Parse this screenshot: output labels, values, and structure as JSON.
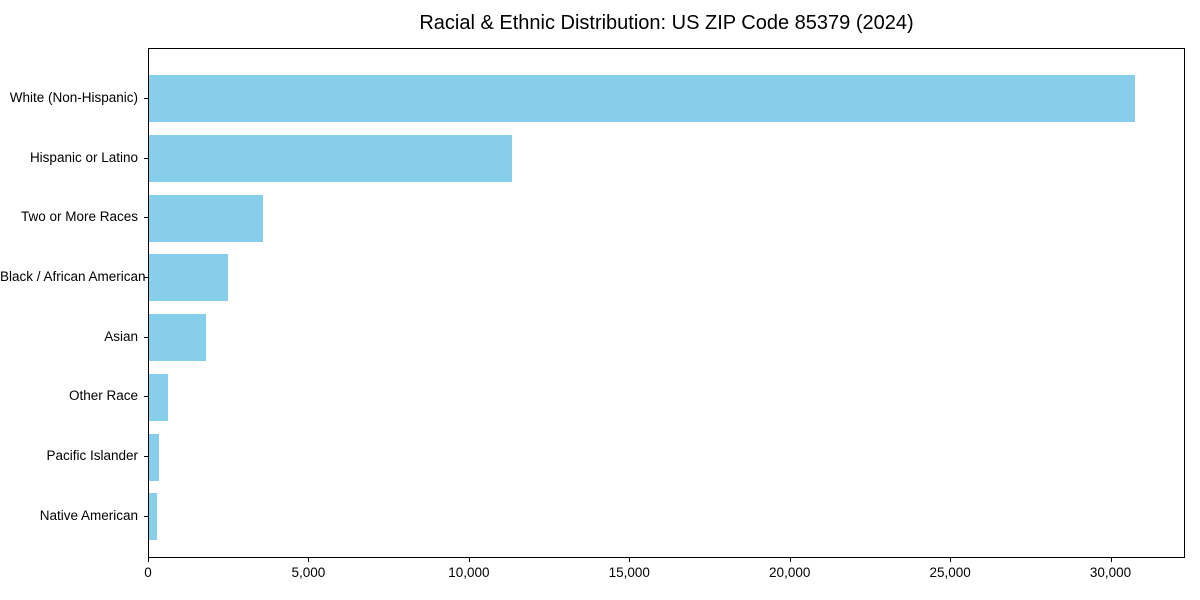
{
  "chart_data": {
    "type": "bar",
    "orientation": "horizontal",
    "title": "Racial & Ethnic Distribution: US ZIP Code 85379 (2024)",
    "categories": [
      "White (Non-Hispanic)",
      "Hispanic or Latino",
      "Two or More Races",
      "Black / African American",
      "Asian",
      "Other Race",
      "Pacific Islander",
      "Native American"
    ],
    "values": [
      30780,
      11350,
      3560,
      2460,
      1780,
      590,
      310,
      250
    ],
    "xlabel": "",
    "ylabel": "",
    "xlim": [
      0,
      32320
    ],
    "xticks": [
      0,
      5000,
      10000,
      15000,
      20000,
      25000,
      30000
    ],
    "xtick_labels": [
      "0",
      "5,000",
      "10,000",
      "15,000",
      "20,000",
      "25,000",
      "30,000"
    ],
    "bar_color": "#87CEEB",
    "grid": false,
    "legend": null,
    "background_color": "#ffffff",
    "frame_color": "#000000"
  }
}
